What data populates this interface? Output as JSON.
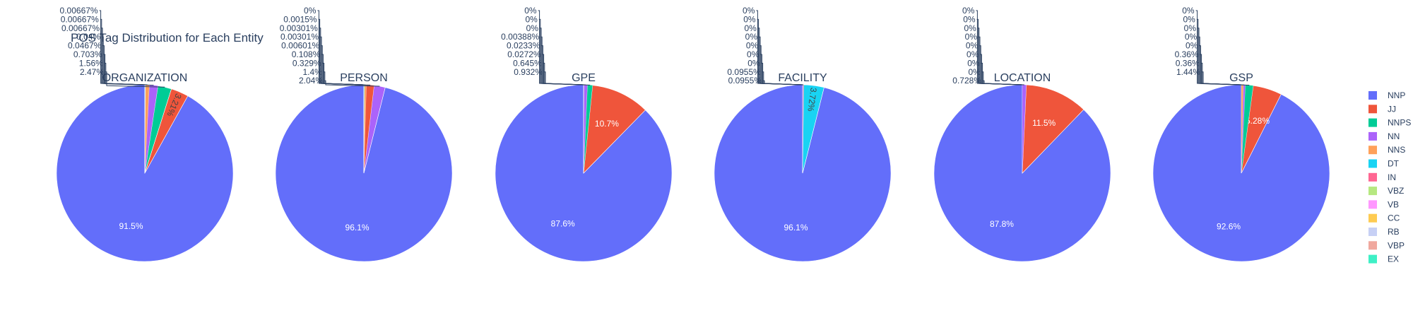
{
  "chart_data": {
    "type": "pie",
    "title": "POS Tag Distribution for Each Entity",
    "legend_position": "right",
    "labels": [
      "NNP",
      "JJ",
      "NNPS",
      "NN",
      "NNS",
      "DT",
      "IN",
      "VBZ",
      "VB",
      "CC",
      "RB",
      "VBP",
      "EX"
    ],
    "colors": [
      "#636efa",
      "#EF553B",
      "#00cc96",
      "#ab63fa",
      "#FFA15A",
      "#19d3f3",
      "#FF6692",
      "#B6E880",
      "#FF97FF",
      "#FECB52",
      "#c7d0f5",
      "#f0a89e",
      "#3ef0c6"
    ],
    "charts": [
      {
        "name": "ORGANIZATION",
        "slices": [
          {
            "label": "NNP",
            "value": 91.5,
            "text": "91.5%"
          },
          {
            "label": "JJ",
            "value": 3.21,
            "text": "3.21%"
          },
          {
            "label": "NNPS",
            "value": 2.47,
            "text": "2.47%"
          },
          {
            "label": "NN",
            "value": 1.56,
            "text": "1.56%"
          },
          {
            "label": "NNS",
            "value": 0.703,
            "text": "0.703%"
          },
          {
            "label": "DT",
            "value": 0.0467,
            "text": "0.0467%"
          },
          {
            "label": "IN",
            "value": 0.04,
            "text": "0.04%"
          },
          {
            "label": "VBZ",
            "value": 0.00667,
            "text": "0.00667%"
          },
          {
            "label": "VB",
            "value": 0.00667,
            "text": "0.00667%"
          },
          {
            "label": "CC",
            "value": 0.00667,
            "text": "0.00667%"
          }
        ]
      },
      {
        "name": "PERSON",
        "slices": [
          {
            "label": "NNP",
            "value": 96.1,
            "text": "96.1%"
          },
          {
            "label": "NN",
            "value": 2.04,
            "text": "2.04%"
          },
          {
            "label": "JJ",
            "value": 1.4,
            "text": "1.4%"
          },
          {
            "label": "NNS",
            "value": 0.329,
            "text": "0.329%"
          },
          {
            "label": "NNPS",
            "value": 0.108,
            "text": "0.108%"
          },
          {
            "label": "DT",
            "value": 0.00601,
            "text": "0.00601%"
          },
          {
            "label": "IN",
            "value": 0.00301,
            "text": "0.00301%"
          },
          {
            "label": "VB",
            "value": 0.00301,
            "text": "0.00301%"
          },
          {
            "label": "VBZ",
            "value": 0.0015,
            "text": "0.0015%"
          },
          {
            "label": "CC",
            "value": 0,
            "text": "0%"
          }
        ]
      },
      {
        "name": "GPE",
        "slices": [
          {
            "label": "NNP",
            "value": 87.6,
            "text": "87.6%"
          },
          {
            "label": "JJ",
            "value": 10.7,
            "text": "10.7%"
          },
          {
            "label": "NNPS",
            "value": 0.932,
            "text": "0.932%"
          },
          {
            "label": "NN",
            "value": 0.645,
            "text": "0.645%"
          },
          {
            "label": "NNS",
            "value": 0.0272,
            "text": "0.0272%"
          },
          {
            "label": "DT",
            "value": 0.0233,
            "text": "0.0233%"
          },
          {
            "label": "IN",
            "value": 0.00388,
            "text": "0.00388%"
          },
          {
            "label": "VBZ",
            "value": 0,
            "text": "0%"
          },
          {
            "label": "VB",
            "value": 0,
            "text": "0%"
          },
          {
            "label": "CC",
            "value": 0,
            "text": "0%"
          }
        ]
      },
      {
        "name": "FACILITY",
        "slices": [
          {
            "label": "NNP",
            "value": 96.1,
            "text": "96.1%"
          },
          {
            "label": "DT",
            "value": 3.72,
            "text": "3.72%"
          },
          {
            "label": "JJ",
            "value": 0.0955,
            "text": "0.0955%"
          },
          {
            "label": "NN",
            "value": 0.0955,
            "text": "0.0955%"
          },
          {
            "label": "NNPS",
            "value": 0,
            "text": "0%"
          },
          {
            "label": "NNS",
            "value": 0,
            "text": "0%"
          },
          {
            "label": "IN",
            "value": 0,
            "text": "0%"
          },
          {
            "label": "VBZ",
            "value": 0,
            "text": "0%"
          },
          {
            "label": "VB",
            "value": 0,
            "text": "0%"
          },
          {
            "label": "CC",
            "value": 0,
            "text": "0%"
          },
          {
            "label": "RB",
            "value": 0,
            "text": "0%"
          }
        ]
      },
      {
        "name": "LOCATION",
        "slices": [
          {
            "label": "NNP",
            "value": 87.8,
            "text": "87.8%"
          },
          {
            "label": "JJ",
            "value": 11.5,
            "text": "11.5%"
          },
          {
            "label": "NN",
            "value": 0.728,
            "text": "0.728%"
          },
          {
            "label": "NNPS",
            "value": 0,
            "text": "0%"
          },
          {
            "label": "NNS",
            "value": 0,
            "text": "0%"
          },
          {
            "label": "DT",
            "value": 0,
            "text": "0%"
          },
          {
            "label": "IN",
            "value": 0,
            "text": "0%"
          },
          {
            "label": "VBZ",
            "value": 0,
            "text": "0%"
          },
          {
            "label": "VB",
            "value": 0,
            "text": "0%"
          },
          {
            "label": "CC",
            "value": 0,
            "text": "0%"
          },
          {
            "label": "RB",
            "value": 0,
            "text": "0%"
          }
        ]
      },
      {
        "name": "GSP",
        "slices": [
          {
            "label": "NNP",
            "value": 92.6,
            "text": "92.6%"
          },
          {
            "label": "JJ",
            "value": 5.28,
            "text": "5.28%"
          },
          {
            "label": "NNPS",
            "value": 1.44,
            "text": "1.44%"
          },
          {
            "label": "NN",
            "value": 0.36,
            "text": "0.36%"
          },
          {
            "label": "NNS",
            "value": 0.36,
            "text": "0.36%"
          },
          {
            "label": "DT",
            "value": 0,
            "text": "0%"
          },
          {
            "label": "IN",
            "value": 0,
            "text": "0%"
          },
          {
            "label": "VBZ",
            "value": 0,
            "text": "0%"
          },
          {
            "label": "VB",
            "value": 0,
            "text": "0%"
          },
          {
            "label": "CC",
            "value": 0,
            "text": "0%"
          }
        ]
      }
    ]
  }
}
